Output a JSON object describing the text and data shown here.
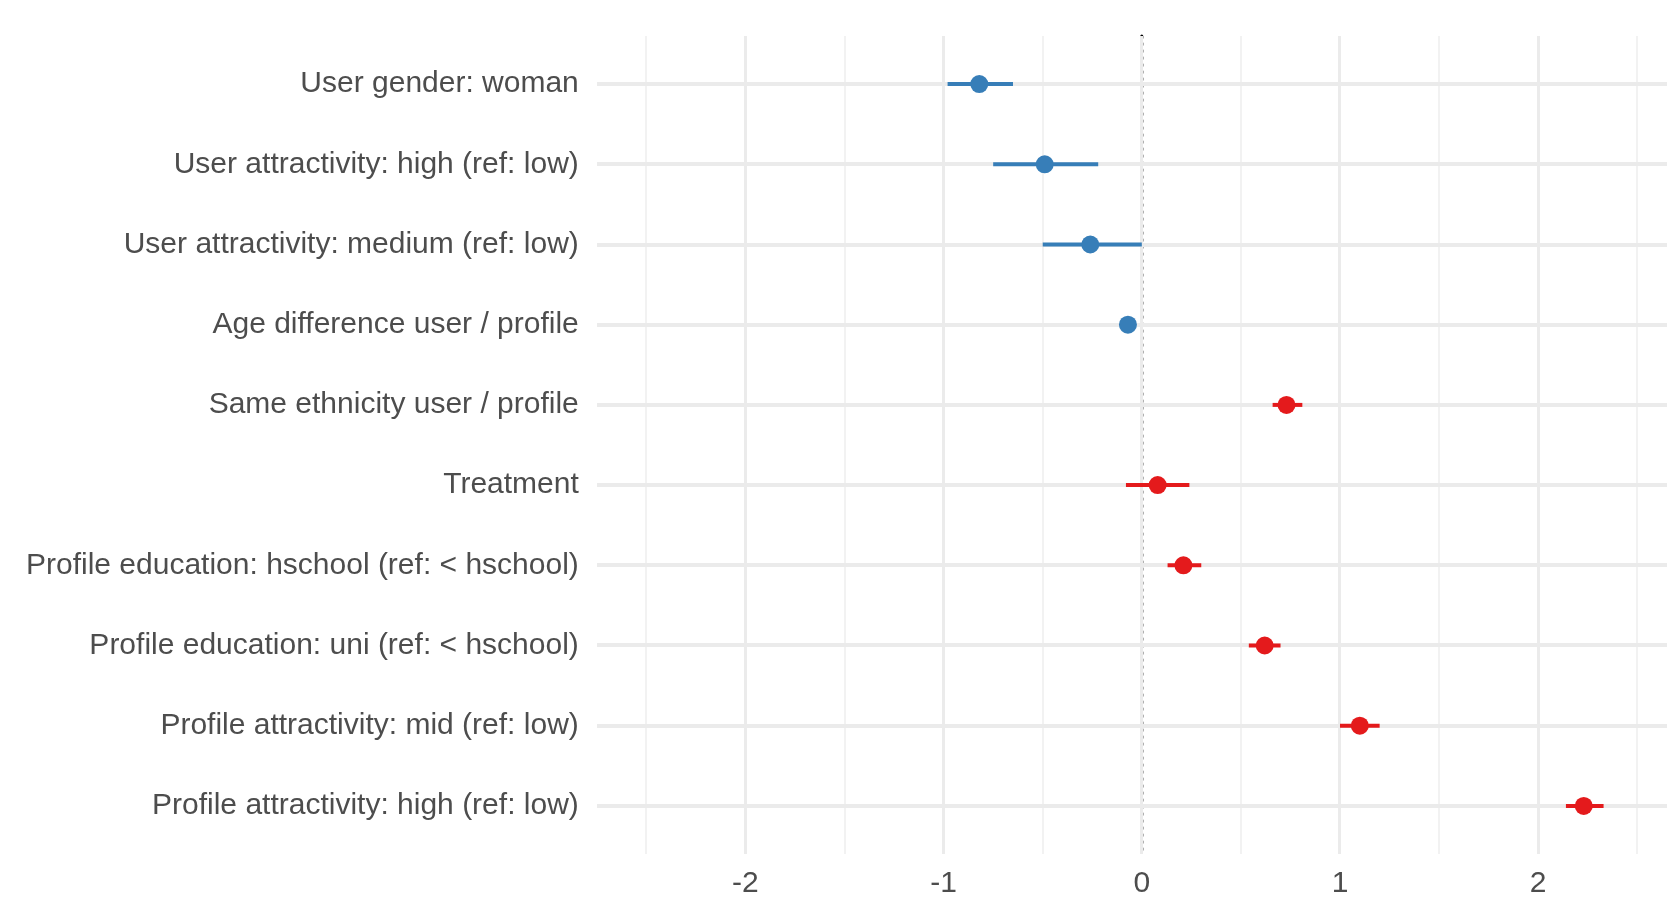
{
  "chart_data": {
    "type": "scatter",
    "orientation": "horizontal",
    "categories": [
      "User gender: woman",
      "User attractivity: high (ref: low)",
      "User attractivity: medium (ref: low)",
      "Age difference user / profile",
      "Same ethnicity user / profile",
      "Treatment",
      "Profile education: hschool (ref: < hschool)",
      "Profile education: uni (ref: < hschool)",
      "Profile attractivity: mid (ref: low)",
      "Profile attractivity: high (ref: low)"
    ],
    "series": [
      {
        "color": "#377eb8",
        "values": [
          -0.82,
          -0.49,
          -0.26,
          -0.07,
          null,
          null,
          null,
          null,
          null,
          null
        ],
        "errors": [
          [
            -0.98,
            -0.65
          ],
          [
            -0.75,
            -0.22
          ],
          [
            -0.5,
            0.0
          ],
          null,
          null,
          null,
          null,
          null,
          null,
          null
        ]
      },
      {
        "color": "#e41a1c",
        "values": [
          null,
          null,
          null,
          null,
          0.73,
          0.08,
          0.21,
          0.62,
          1.1,
          2.23
        ],
        "errors": [
          null,
          null,
          null,
          null,
          [
            0.66,
            0.81
          ],
          [
            -0.08,
            0.24
          ],
          [
            0.13,
            0.3
          ],
          [
            0.54,
            0.7
          ],
          [
            1.0,
            1.2
          ],
          [
            2.14,
            2.33
          ]
        ]
      }
    ],
    "xlim": [
      -2.75,
      2.65
    ],
    "xticks": [
      {
        "value": -2.5,
        "label": null
      },
      -2,
      {
        "value": -1.5,
        "label": null
      },
      -1,
      {
        "value": -0.5,
        "label": null
      },
      0,
      {
        "value": 0.5,
        "label": null
      },
      1,
      {
        "value": 1.5,
        "label": null
      },
      2,
      {
        "value": 2.5,
        "label": null
      }
    ],
    "ref_lines": [
      {
        "axis": "x",
        "value": 0,
        "color": "#000000",
        "line_style": "dotted"
      }
    ],
    "grid": true,
    "legend": false,
    "marker": "circle"
  }
}
